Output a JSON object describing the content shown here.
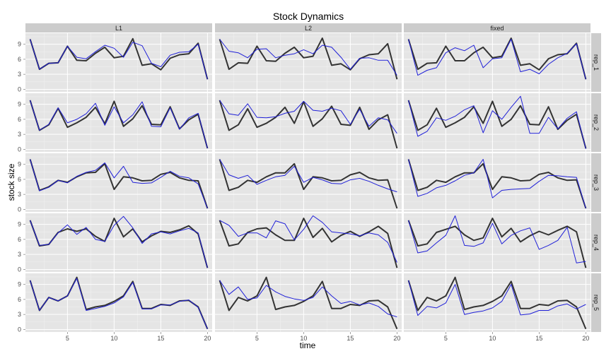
{
  "chart_data": {
    "type": "line",
    "title": "Stock Dynamics",
    "xlabel": "time",
    "ylabel": "stock size",
    "columns": [
      "L1",
      "L2",
      "fixed"
    ],
    "rows": [
      "rep_1",
      "rep_2",
      "rep_3",
      "rep_4",
      "rep_5"
    ],
    "xlim": [
      0.5,
      20.5
    ],
    "ylim": [
      -0.5,
      11.2
    ],
    "x_ticks": [
      5,
      10,
      15,
      20
    ],
    "y_ticks": [
      0,
      3,
      6,
      9
    ],
    "grid": true,
    "legend": "none",
    "colors": {
      "panel_bg": "#e5e5e5",
      "strip_bg": "#cccccc",
      "grid_major": "#ffffff",
      "grid_minor": "#f2f2f2",
      "series_dark": "#333333",
      "series_blue": "#2020d8"
    },
    "x": [
      1,
      2,
      3,
      4,
      5,
      6,
      7,
      8,
      9,
      10,
      11,
      12,
      13,
      14,
      15,
      16,
      17,
      18,
      19,
      20
    ],
    "panels": {
      "L1": {
        "rep_1": {
          "dark": [
            10,
            4,
            5.2,
            5.3,
            8.6,
            5.8,
            5.7,
            7.2,
            8.4,
            6.3,
            6.6,
            10.1,
            4.8,
            5.1,
            3.9,
            6.2,
            6.9,
            7.1,
            9.2,
            2
          ],
          "blue": [
            10,
            4,
            5.2,
            5.3,
            8.6,
            6.4,
            6.1,
            7.5,
            8.8,
            8.2,
            6.4,
            9.4,
            8.7,
            5.2,
            4.5,
            6.8,
            7.4,
            7.5,
            9,
            2
          ]
        },
        "rep_2": {
          "dark": [
            9.8,
            3.8,
            4.9,
            8.2,
            4.4,
            5.3,
            6.4,
            8.4,
            5.1,
            9.6,
            4.6,
            6.1,
            8.7,
            5,
            4.9,
            8.5,
            4.1,
            5.9,
            7,
            0.2
          ],
          "blue": [
            9.8,
            3.8,
            5,
            8.3,
            5.3,
            6,
            7.1,
            9.2,
            4.8,
            8.5,
            5.3,
            6.9,
            9.5,
            4.6,
            4.5,
            8.3,
            4,
            6.3,
            7.2,
            0.2
          ]
        },
        "rep_3": {
          "dark": [
            10,
            3.8,
            4.5,
            5.8,
            5.4,
            6.5,
            7.3,
            7.4,
            9.1,
            4,
            6.5,
            6.3,
            5.7,
            5.8,
            7,
            7.4,
            6.3,
            5.8,
            5.7,
            0.2
          ],
          "blue": [
            10,
            3.7,
            4.4,
            5.8,
            5.3,
            6.6,
            7.4,
            7.8,
            9.3,
            6.3,
            8.6,
            5.4,
            5.2,
            5.3,
            6.4,
            7.6,
            6.6,
            6.3,
            5.1,
            0.2
          ]
        },
        "rep_4": {
          "dark": [
            9.8,
            4.7,
            5,
            7.4,
            8.1,
            7.6,
            8.1,
            6.6,
            5.6,
            10.2,
            6.5,
            8.1,
            5.5,
            6.7,
            7.6,
            7.4,
            7.9,
            8.7,
            7.1,
            0.3
          ],
          "blue": [
            9.8,
            4.8,
            5,
            7.3,
            8.9,
            7,
            8.4,
            6,
            5.6,
            8.8,
            10.6,
            8.3,
            5.2,
            7.1,
            7.5,
            7.1,
            7.7,
            8.2,
            7.3,
            0.3
          ]
        },
        "rep_5": {
          "dark": [
            9.8,
            3.8,
            6.4,
            5.7,
            6.7,
            10.4,
            4,
            4.5,
            4.8,
            5.6,
            6.7,
            9.6,
            4.2,
            4.2,
            5,
            4.8,
            5.7,
            5.8,
            4.5,
            0.1
          ],
          "blue": [
            9.8,
            3.8,
            6.4,
            5.7,
            6.7,
            10.2,
            3.8,
            4.2,
            4.6,
            5.3,
            6.5,
            9.4,
            4.1,
            4.1,
            4.9,
            4.9,
            5.6,
            5.9,
            4.4,
            0.1
          ]
        }
      },
      "L2": {
        "rep_1": {
          "dark": [
            10,
            4,
            5.3,
            5.2,
            8.6,
            5.7,
            5.6,
            7.2,
            8.4,
            6.3,
            6.6,
            10.2,
            4.8,
            5.1,
            3.9,
            6.1,
            6.9,
            7.1,
            9.1,
            2
          ],
          "blue": [
            10,
            7.6,
            7.3,
            6.3,
            8,
            8.1,
            6.3,
            6.8,
            7.1,
            7.9,
            7.1,
            8.8,
            8.4,
            6.4,
            4,
            6.2,
            6.3,
            5.8,
            5.8,
            2.8
          ]
        },
        "rep_2": {
          "dark": [
            9.8,
            3.8,
            4.9,
            8.1,
            4.4,
            5.2,
            6.4,
            8.4,
            5.2,
            9.5,
            4.6,
            6.1,
            8.6,
            5,
            4.8,
            8.4,
            4,
            5.9,
            6.9,
            0.2
          ],
          "blue": [
            9.8,
            7.1,
            6.8,
            9.1,
            6.4,
            6.3,
            6.5,
            7.2,
            7.6,
            9.6,
            7.8,
            7.6,
            8.2,
            7.7,
            5,
            8,
            4.6,
            6.3,
            5.9,
            3.2
          ]
        },
        "rep_3": {
          "dark": [
            10,
            3.8,
            4.4,
            5.8,
            5.4,
            6.5,
            7.3,
            7.3,
            9.1,
            4,
            6.5,
            6.3,
            5.7,
            5.8,
            6.9,
            7.4,
            6.3,
            5.8,
            5.9,
            0.2
          ],
          "blue": [
            10,
            6.9,
            6.2,
            6.8,
            5,
            5.8,
            6.5,
            6.8,
            8.6,
            5.4,
            6.4,
            5.9,
            5.2,
            5.1,
            5.9,
            6.2,
            5.6,
            4.8,
            4.1,
            3.5
          ]
        },
        "rep_4": {
          "dark": [
            9.8,
            4.7,
            5.1,
            7.4,
            8.1,
            8.3,
            6.9,
            5.8,
            5.8,
            10.2,
            6.4,
            8.2,
            5.5,
            6.8,
            7.6,
            6.6,
            7.5,
            8.6,
            7.2,
            0.3
          ],
          "blue": [
            9.8,
            8.8,
            6.6,
            7.3,
            7.3,
            6.3,
            9.7,
            9.1,
            5.9,
            8,
            10.7,
            9.4,
            7.5,
            7.3,
            7.1,
            6.7,
            7.3,
            6.9,
            5.4,
            1.4
          ]
        },
        "rep_5": {
          "dark": [
            9.8,
            3.8,
            6.4,
            5.7,
            6.7,
            10.4,
            4,
            4.5,
            4.8,
            5.6,
            6.7,
            9.6,
            4.2,
            4.2,
            5,
            4.8,
            5.7,
            5.8,
            4.5,
            0.1
          ],
          "blue": [
            9.8,
            7,
            8.5,
            6,
            6.3,
            8.8,
            7.5,
            6.6,
            6.1,
            5.8,
            6.4,
            8.5,
            6.7,
            5.2,
            5.6,
            4.9,
            5.3,
            4.6,
            3.1,
            2.5
          ]
        }
      },
      "fixed": {
        "rep_1": {
          "dark": [
            10,
            4,
            5.2,
            5.3,
            8.6,
            5.7,
            5.7,
            7.3,
            8.4,
            6.3,
            6.6,
            10.2,
            4.8,
            5.1,
            3.9,
            6.1,
            6.9,
            7.1,
            9.2,
            2
          ],
          "blue": [
            10,
            2.8,
            3.8,
            4.3,
            7.3,
            8.3,
            7.7,
            8.8,
            4.3,
            6.1,
            6.3,
            10,
            3.5,
            4,
            3.1,
            5,
            6.3,
            7.2,
            9.1,
            2
          ]
        },
        "rep_2": {
          "dark": [
            9.8,
            3.8,
            4.9,
            8.2,
            4.4,
            5.3,
            6.4,
            8.5,
            5.2,
            9.6,
            4.6,
            6,
            8.7,
            5,
            4.9,
            8.5,
            4,
            5.8,
            7,
            0.2
          ],
          "blue": [
            9.8,
            2.6,
            3.6,
            6.3,
            5.8,
            6.6,
            7.9,
            8.7,
            3.3,
            7.7,
            6,
            8.4,
            10.6,
            3.2,
            3.2,
            6.4,
            4.1,
            6.2,
            7.5,
            0.1
          ]
        },
        "rep_3": {
          "dark": [
            10,
            3.8,
            4.4,
            5.8,
            5.4,
            6.5,
            7.3,
            7.3,
            9.1,
            4,
            6.5,
            6.3,
            5.7,
            5.8,
            7,
            7.4,
            6.3,
            5.8,
            5.9,
            0.2
          ],
          "blue": [
            10,
            2.6,
            3.2,
            4.3,
            4.8,
            5.7,
            6.8,
            7.3,
            10,
            2.3,
            3.8,
            4,
            4.1,
            4.2,
            5.6,
            6.8,
            6.7,
            6.5,
            6.4,
            0.2
          ]
        },
        "rep_4": {
          "dark": [
            9.8,
            4.7,
            5.1,
            7.4,
            8,
            8.6,
            6.9,
            5.8,
            6.3,
            10.2,
            6.5,
            8.2,
            5.5,
            6.7,
            7.6,
            6.9,
            7.8,
            8.6,
            7.5,
            0.3
          ],
          "blue": [
            9.8,
            3.3,
            3.7,
            5.3,
            6.8,
            10.7,
            4.8,
            4.6,
            5.3,
            9.2,
            5.1,
            6.8,
            7.7,
            8.3,
            4,
            4.8,
            5.8,
            8.4,
            1.3,
            1.6
          ]
        },
        "rep_5": {
          "dark": [
            9.8,
            3.8,
            6.4,
            5.7,
            6.7,
            10.4,
            4,
            4.5,
            4.8,
            5.6,
            6.7,
            9.6,
            4.2,
            4.2,
            5,
            4.8,
            5.7,
            5.8,
            4.5,
            0.1
          ],
          "blue": [
            9.8,
            2.8,
            4.6,
            4.3,
            5.3,
            9,
            3,
            3.4,
            3.7,
            4.3,
            5.6,
            9,
            2.9,
            3.1,
            3.8,
            3.8,
            4.7,
            5.1,
            4.1,
            5
          ]
        }
      }
    }
  }
}
